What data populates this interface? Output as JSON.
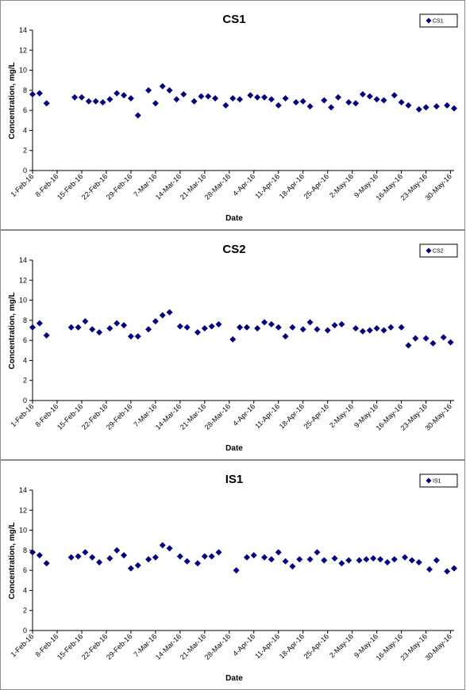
{
  "chart_data": [
    {
      "type": "scatter",
      "title": "CS1",
      "xlabel": "Date",
      "ylabel": "Concentration, mg/L",
      "ylim": [
        0,
        14
      ],
      "yticks": [
        0,
        2,
        4,
        6,
        8,
        10,
        12,
        14
      ],
      "xticks": [
        "1-Feb-16",
        "8-Feb-16",
        "15-Feb-16",
        "22-Feb-16",
        "29-Feb-16",
        "7-Mar-16",
        "14-Mar-16",
        "21-Mar-16",
        "28-Mar-16",
        "4-Apr-16",
        "11-Apr-16",
        "18-Apr-16",
        "25-Apr-16",
        "2-May-16",
        "9-May-16",
        "16-May-16",
        "23-May-16",
        "30-May-16"
      ],
      "xrange": [
        "1-Feb-16",
        "31-May-16"
      ],
      "grid": false,
      "legend_position": "top-right",
      "marker_color": "#000080",
      "series": [
        {
          "name": "CS1",
          "points": [
            [
              "1-Feb-16",
              7.6
            ],
            [
              "3-Feb-16",
              7.7
            ],
            [
              "5-Feb-16",
              6.7
            ],
            [
              "13-Feb-16",
              7.3
            ],
            [
              "15-Feb-16",
              7.3
            ],
            [
              "17-Feb-16",
              6.9
            ],
            [
              "19-Feb-16",
              6.9
            ],
            [
              "21-Feb-16",
              6.8
            ],
            [
              "23-Feb-16",
              7.1
            ],
            [
              "25-Feb-16",
              7.7
            ],
            [
              "27-Feb-16",
              7.5
            ],
            [
              "29-Feb-16",
              7.2
            ],
            [
              "2-Mar-16",
              5.5
            ],
            [
              "5-Mar-16",
              8.0
            ],
            [
              "7-Mar-16",
              6.7
            ],
            [
              "9-Mar-16",
              8.4
            ],
            [
              "11-Mar-16",
              8.0
            ],
            [
              "13-Mar-16",
              7.1
            ],
            [
              "15-Mar-16",
              7.6
            ],
            [
              "18-Mar-16",
              6.9
            ],
            [
              "20-Mar-16",
              7.4
            ],
            [
              "22-Mar-16",
              7.4
            ],
            [
              "24-Mar-16",
              7.2
            ],
            [
              "27-Mar-16",
              6.5
            ],
            [
              "29-Mar-16",
              7.2
            ],
            [
              "31-Mar-16",
              7.1
            ],
            [
              "3-Apr-16",
              7.5
            ],
            [
              "5-Apr-16",
              7.3
            ],
            [
              "7-Apr-16",
              7.3
            ],
            [
              "9-Apr-16",
              7.1
            ],
            [
              "11-Apr-16",
              6.5
            ],
            [
              "13-Apr-16",
              7.2
            ],
            [
              "16-Apr-16",
              6.8
            ],
            [
              "18-Apr-16",
              6.9
            ],
            [
              "20-Apr-16",
              6.4
            ],
            [
              "24-Apr-16",
              7.0
            ],
            [
              "26-Apr-16",
              6.3
            ],
            [
              "28-Apr-16",
              7.3
            ],
            [
              "1-May-16",
              6.8
            ],
            [
              "3-May-16",
              6.7
            ],
            [
              "5-May-16",
              7.6
            ],
            [
              "7-May-16",
              7.4
            ],
            [
              "9-May-16",
              7.1
            ],
            [
              "11-May-16",
              7.0
            ],
            [
              "14-May-16",
              7.5
            ],
            [
              "16-May-16",
              6.8
            ],
            [
              "18-May-16",
              6.5
            ],
            [
              "21-May-16",
              6.1
            ],
            [
              "23-May-16",
              6.3
            ],
            [
              "26-May-16",
              6.4
            ],
            [
              "29-May-16",
              6.5
            ],
            [
              "31-May-16",
              6.2
            ]
          ]
        }
      ]
    },
    {
      "type": "scatter",
      "title": "CS2",
      "xlabel": "Date",
      "ylabel": "Concentration, mg/L",
      "ylim": [
        0,
        14
      ],
      "yticks": [
        0,
        2,
        4,
        6,
        8,
        10,
        12,
        14
      ],
      "xticks": [
        "1-Feb-16",
        "8-Feb-16",
        "15-Feb-16",
        "22-Feb-16",
        "29-Feb-16",
        "7-Mar-16",
        "14-Mar-16",
        "21-Mar-16",
        "28-Mar-16",
        "4-Apr-16",
        "11-Apr-16",
        "18-Apr-16",
        "25-Apr-16",
        "2-May-16",
        "9-May-16",
        "16-May-16",
        "23-May-16",
        "30-May-16"
      ],
      "xrange": [
        "1-Feb-16",
        "31-May-16"
      ],
      "grid": false,
      "legend_position": "top-right",
      "marker_color": "#000080",
      "series": [
        {
          "name": "CS2",
          "points": [
            [
              "1-Feb-16",
              7.3
            ],
            [
              "3-Feb-16",
              7.7
            ],
            [
              "5-Feb-16",
              6.5
            ],
            [
              "12-Feb-16",
              7.3
            ],
            [
              "14-Feb-16",
              7.3
            ],
            [
              "16-Feb-16",
              7.9
            ],
            [
              "18-Feb-16",
              7.1
            ],
            [
              "20-Feb-16",
              6.8
            ],
            [
              "23-Feb-16",
              7.2
            ],
            [
              "25-Feb-16",
              7.7
            ],
            [
              "27-Feb-16",
              7.5
            ],
            [
              "29-Feb-16",
              6.4
            ],
            [
              "2-Mar-16",
              6.4
            ],
            [
              "5-Mar-16",
              7.1
            ],
            [
              "7-Mar-16",
              7.9
            ],
            [
              "9-Mar-16",
              8.5
            ],
            [
              "11-Mar-16",
              8.8
            ],
            [
              "14-Mar-16",
              7.4
            ],
            [
              "16-Mar-16",
              7.3
            ],
            [
              "19-Mar-16",
              6.8
            ],
            [
              "21-Mar-16",
              7.2
            ],
            [
              "23-Mar-16",
              7.4
            ],
            [
              "25-Mar-16",
              7.6
            ],
            [
              "29-Mar-16",
              6.1
            ],
            [
              "31-Mar-16",
              7.3
            ],
            [
              "2-Apr-16",
              7.3
            ],
            [
              "5-Apr-16",
              7.2
            ],
            [
              "7-Apr-16",
              7.8
            ],
            [
              "9-Apr-16",
              7.6
            ],
            [
              "11-Apr-16",
              7.3
            ],
            [
              "13-Apr-16",
              6.4
            ],
            [
              "15-Apr-16",
              7.3
            ],
            [
              "18-Apr-16",
              7.1
            ],
            [
              "20-Apr-16",
              7.8
            ],
            [
              "22-Apr-16",
              7.1
            ],
            [
              "25-Apr-16",
              7.0
            ],
            [
              "27-Apr-16",
              7.5
            ],
            [
              "29-Apr-16",
              7.6
            ],
            [
              "3-May-16",
              7.2
            ],
            [
              "5-May-16",
              6.9
            ],
            [
              "7-May-16",
              7.0
            ],
            [
              "9-May-16",
              7.2
            ],
            [
              "11-May-16",
              7.0
            ],
            [
              "13-May-16",
              7.3
            ],
            [
              "16-May-16",
              7.3
            ],
            [
              "18-May-16",
              5.5
            ],
            [
              "20-May-16",
              6.2
            ],
            [
              "23-May-16",
              6.2
            ],
            [
              "25-May-16",
              5.7
            ],
            [
              "28-May-16",
              6.3
            ],
            [
              "30-May-16",
              5.8
            ]
          ]
        }
      ]
    },
    {
      "type": "scatter",
      "title": "IS1",
      "xlabel": "Date",
      "ylabel": "Concentration, mg/L",
      "ylim": [
        0,
        14
      ],
      "yticks": [
        0,
        2,
        4,
        6,
        8,
        10,
        12,
        14
      ],
      "xticks": [
        "1-Feb-16",
        "8-Feb-16",
        "15-Feb-16",
        "22-Feb-16",
        "29-Feb-16",
        "7-Mar-16",
        "14-Mar-16",
        "21-Mar-16",
        "28-Mar-16",
        "4-Apr-16",
        "11-Apr-16",
        "18-Apr-16",
        "25-Apr-16",
        "2-May-16",
        "9-May-16",
        "16-May-16",
        "23-May-16",
        "30-May-16"
      ],
      "xrange": [
        "1-Feb-16",
        "31-May-16"
      ],
      "grid": false,
      "legend_position": "top-right",
      "marker_color": "#000080",
      "series": [
        {
          "name": "IS1",
          "points": [
            [
              "1-Feb-16",
              7.8
            ],
            [
              "3-Feb-16",
              7.5
            ],
            [
              "5-Feb-16",
              6.7
            ],
            [
              "12-Feb-16",
              7.3
            ],
            [
              "14-Feb-16",
              7.4
            ],
            [
              "16-Feb-16",
              7.8
            ],
            [
              "18-Feb-16",
              7.3
            ],
            [
              "20-Feb-16",
              6.8
            ],
            [
              "23-Feb-16",
              7.2
            ],
            [
              "25-Feb-16",
              8.0
            ],
            [
              "27-Feb-16",
              7.5
            ],
            [
              "29-Feb-16",
              6.2
            ],
            [
              "2-Mar-16",
              6.5
            ],
            [
              "5-Mar-16",
              7.1
            ],
            [
              "7-Mar-16",
              7.3
            ],
            [
              "9-Mar-16",
              8.5
            ],
            [
              "11-Mar-16",
              8.2
            ],
            [
              "14-Mar-16",
              7.4
            ],
            [
              "16-Mar-16",
              6.9
            ],
            [
              "19-Mar-16",
              6.7
            ],
            [
              "21-Mar-16",
              7.4
            ],
            [
              "23-Mar-16",
              7.4
            ],
            [
              "25-Mar-16",
              7.8
            ],
            [
              "30-Mar-16",
              6.0
            ],
            [
              "2-Apr-16",
              7.3
            ],
            [
              "4-Apr-16",
              7.5
            ],
            [
              "7-Apr-16",
              7.3
            ],
            [
              "9-Apr-16",
              7.1
            ],
            [
              "11-Apr-16",
              7.8
            ],
            [
              "13-Apr-16",
              6.9
            ],
            [
              "15-Apr-16",
              6.4
            ],
            [
              "17-Apr-16",
              7.1
            ],
            [
              "20-Apr-16",
              7.1
            ],
            [
              "22-Apr-16",
              7.8
            ],
            [
              "24-Apr-16",
              7.0
            ],
            [
              "27-Apr-16",
              7.2
            ],
            [
              "29-Apr-16",
              6.7
            ],
            [
              "1-May-16",
              7.0
            ],
            [
              "4-May-16",
              7.0
            ],
            [
              "6-May-16",
              7.1
            ],
            [
              "8-May-16",
              7.2
            ],
            [
              "10-May-16",
              7.1
            ],
            [
              "12-May-16",
              6.8
            ],
            [
              "14-May-16",
              7.1
            ],
            [
              "17-May-16",
              7.3
            ],
            [
              "19-May-16",
              7.0
            ],
            [
              "21-May-16",
              6.8
            ],
            [
              "24-May-16",
              6.1
            ],
            [
              "26-May-16",
              7.0
            ],
            [
              "29-May-16",
              5.9
            ],
            [
              "31-May-16",
              6.2
            ]
          ]
        }
      ]
    }
  ]
}
